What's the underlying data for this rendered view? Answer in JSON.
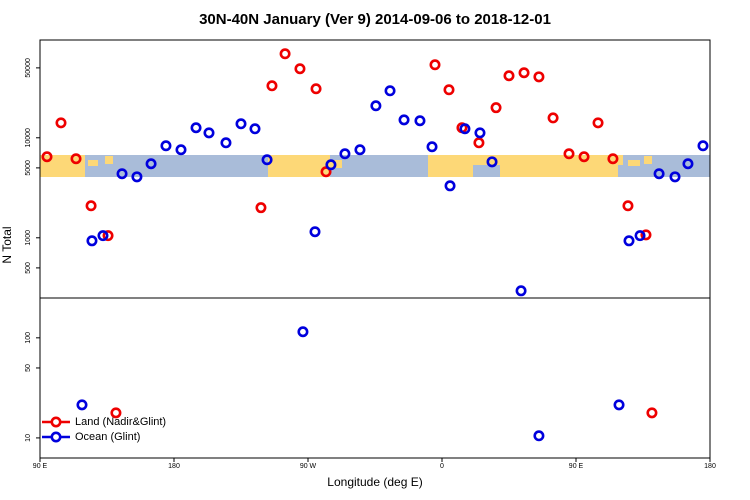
{
  "chart_data": {
    "type": "scatter",
    "title": "30N-40N January (Ver 9)   2014-09-06 to 2018-12-01",
    "x_label": "Longitude (deg E)",
    "y_label": "N Total",
    "log_scale": true,
    "legend": "bottom-left",
    "xlim": [
      90,
      540
    ],
    "xticks": [
      {
        "value": 90,
        "label": "90 E"
      },
      {
        "value": 180,
        "label": "180"
      },
      {
        "value": 270,
        "label": "90 W"
      },
      {
        "value": 360,
        "label": "0"
      },
      {
        "value": 450,
        "label": "90 E"
      },
      {
        "value": 540,
        "label": "180"
      }
    ],
    "panels": [
      {
        "ylim": [
          250,
          95000
        ],
        "yticks": [
          500,
          1000,
          5000,
          10000,
          50000
        ]
      },
      {
        "ylim": [
          6.3,
          250
        ],
        "yticks": [
          10,
          50,
          100
        ]
      }
    ],
    "series": [
      {
        "name": "Land (Nadir&Glint)",
        "color": "#ee0000",
        "x": [
          94.7,
          104.1,
          114.2,
          124.3,
          135.7,
          238.4,
          245.8,
          254.6,
          264.6,
          275.4,
          282.1,
          355.3,
          364.7,
          373.4,
          384.8,
          396.3,
          405.0,
          415.1,
          425.1,
          434.6,
          445.3,
          455.4,
          464.8,
          474.8,
          484.9,
          497.0,
          141.0,
          501.0
        ],
        "values": [
          6460,
          14100,
          6170,
          2090,
          1050,
          2000,
          33100,
          69200,
          49000,
          30900,
          4570,
          53700,
          30200,
          12600,
          8910,
          20000,
          41700,
          44700,
          40700,
          15800,
          6920,
          6460,
          14100,
          6170,
          2090,
          1070,
          17.8,
          17.8
        ]
      },
      {
        "name": "Ocean (Glint)",
        "color": "#0000dd",
        "x": [
          124.9,
          132.3,
          145.1,
          155.1,
          164.6,
          174.6,
          184.7,
          194.8,
          203.5,
          214.9,
          225.0,
          234.4,
          242.5,
          274.7,
          285.4,
          294.8,
          304.9,
          315.6,
          325.1,
          334.5,
          345.2,
          353.3,
          365.4,
          375.4,
          385.5,
          393.6,
          413.1,
          266.6,
          118.2,
          425.1,
          478.9,
          485.6,
          493.0,
          505.8,
          516.5,
          525.2,
          535.3
        ],
        "values": [
          933,
          1050,
          4370,
          4070,
          5500,
          8320,
          7590,
          12600,
          11200,
          8910,
          13800,
          12300,
          6030,
          1150,
          5370,
          6920,
          7590,
          20900,
          29500,
          15100,
          14800,
          8130,
          3310,
          12300,
          11200,
          5750,
          295,
          115,
          21.4,
          10.5,
          21.4,
          933,
          1050,
          4370,
          4070,
          5500,
          8320
        ]
      }
    ]
  }
}
